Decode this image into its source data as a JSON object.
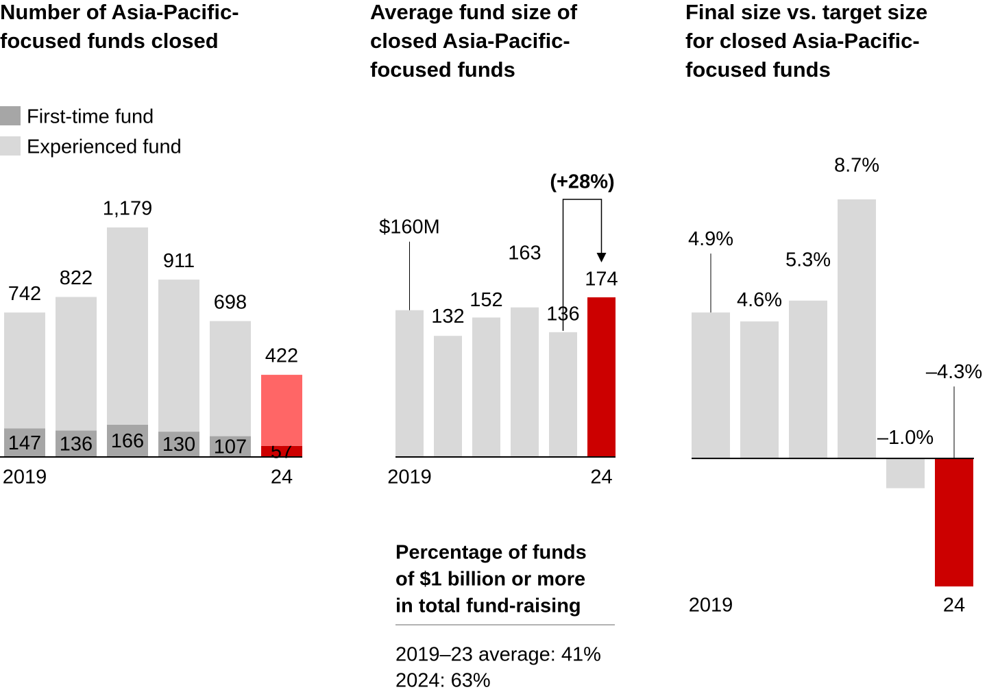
{
  "chart_data": [
    {
      "type": "stacked_bar",
      "title": [
        "Number of Asia-Pacific-",
        "focused funds closed"
      ],
      "categories": [
        "2019",
        null,
        null,
        null,
        null,
        "24"
      ],
      "series": [
        {
          "name": "First-time fund",
          "color": "#a6a6a6",
          "show_values": true,
          "colors": [
            "#a6a6a6",
            "#a6a6a6",
            "#a6a6a6",
            "#a6a6a6",
            "#a6a6a6",
            "#cc0000"
          ],
          "values": [
            147,
            136,
            166,
            130,
            107,
            57
          ]
        },
        {
          "name": "Experienced fund",
          "color": "#d9d9d9",
          "colors": [
            "#d9d9d9",
            "#d9d9d9",
            "#d9d9d9",
            "#d9d9d9",
            "#d9d9d9",
            "#ff6666"
          ],
          "values": [
            595,
            686,
            1013,
            781,
            591,
            365
          ]
        }
      ],
      "totals": [
        742,
        822,
        1179,
        911,
        698,
        422
      ],
      "total_labels": [
        "742",
        "822",
        "1,179",
        "911",
        "698",
        "422"
      ],
      "ylim": [
        0,
        1179
      ]
    },
    {
      "type": "bar",
      "title": [
        "Average fund size of",
        "closed Asia-Pacific-",
        "focused funds"
      ],
      "categories": [
        "2019",
        null,
        null,
        null,
        null,
        "24"
      ],
      "values": [
        160,
        132,
        152,
        163,
        136,
        174
      ],
      "value_labels": [
        "$160M",
        "132",
        "152",
        "163",
        "136",
        "174"
      ],
      "colors": [
        "#d9d9d9",
        "#d9d9d9",
        "#d9d9d9",
        "#d9d9d9",
        "#d9d9d9",
        "#cc0000"
      ],
      "annotation": "(+28%)",
      "note": {
        "title": [
          "Percentage of funds",
          "of $1 billion or more",
          "in total fund-raising"
        ],
        "lines": [
          "2019–23 average: 41%",
          "2024: 63%"
        ]
      },
      "ylim": [
        0,
        174
      ]
    },
    {
      "type": "bar",
      "title": [
        "Final size vs. target size",
        "for closed Asia-Pacific-",
        "focused funds"
      ],
      "categories": [
        "2019",
        null,
        null,
        null,
        null,
        "24"
      ],
      "values": [
        4.9,
        4.6,
        5.3,
        8.7,
        -1.0,
        -4.3
      ],
      "value_labels": [
        "4.9%",
        "4.6%",
        "5.3%",
        "8.7%",
        "–1.0%",
        "–4.3%"
      ],
      "colors": [
        "#d9d9d9",
        "#d9d9d9",
        "#d9d9d9",
        "#d9d9d9",
        "#d9d9d9",
        "#cc0000"
      ],
      "ylim": [
        -4.3,
        8.7
      ]
    }
  ]
}
